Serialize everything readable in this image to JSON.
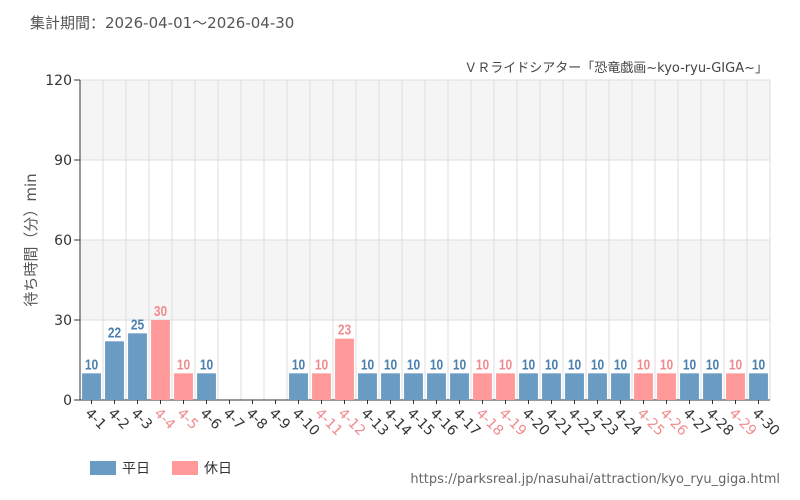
{
  "header": {
    "period": "集計期間：2026-04-01～2026-04-30"
  },
  "footer": {
    "source_url": "https://parksreal.jp/nasuhai/attraction/kyo_ryu_giga.html"
  },
  "colors": {
    "weekday": "#6a9bc3",
    "holiday": "#ff999a",
    "weekday_label": "#4a7fae",
    "holiday_label": "#f08c8f",
    "grid_band": "#f5f5f5",
    "grid_line": "#dddddd"
  },
  "chart_data": {
    "type": "bar",
    "title": "ＶＲライドシアター「恐竜戯画~kyo-ryu-GIGA~」",
    "ylabel": "待ち時間（分）min",
    "ylim": [
      0,
      120
    ],
    "yticks": [
      0,
      30,
      60,
      90,
      120
    ],
    "legend": [
      "平日",
      "休日"
    ],
    "legend_position": "bottom-left",
    "categories": [
      "4-1",
      "4-2",
      "4-3",
      "4-4",
      "4-5",
      "4-6",
      "4-7",
      "4-8",
      "4-9",
      "4-10",
      "4-11",
      "4-12",
      "4-13",
      "4-14",
      "4-15",
      "4-16",
      "4-17",
      "4-18",
      "4-19",
      "4-20",
      "4-21",
      "4-22",
      "4-23",
      "4-24",
      "4-25",
      "4-26",
      "4-27",
      "4-28",
      "4-29",
      "4-30"
    ],
    "values": [
      10,
      22,
      25,
      30,
      10,
      10,
      null,
      null,
      null,
      10,
      10,
      23,
      10,
      10,
      10,
      10,
      10,
      10,
      10,
      10,
      10,
      10,
      10,
      10,
      10,
      10,
      10,
      10,
      10,
      10
    ],
    "day_type": [
      "平日",
      "平日",
      "平日",
      "休日",
      "休日",
      "平日",
      "平日",
      "平日",
      "平日",
      "平日",
      "休日",
      "休日",
      "平日",
      "平日",
      "平日",
      "平日",
      "平日",
      "休日",
      "休日",
      "平日",
      "平日",
      "平日",
      "平日",
      "平日",
      "休日",
      "休日",
      "平日",
      "平日",
      "休日",
      "平日"
    ]
  }
}
